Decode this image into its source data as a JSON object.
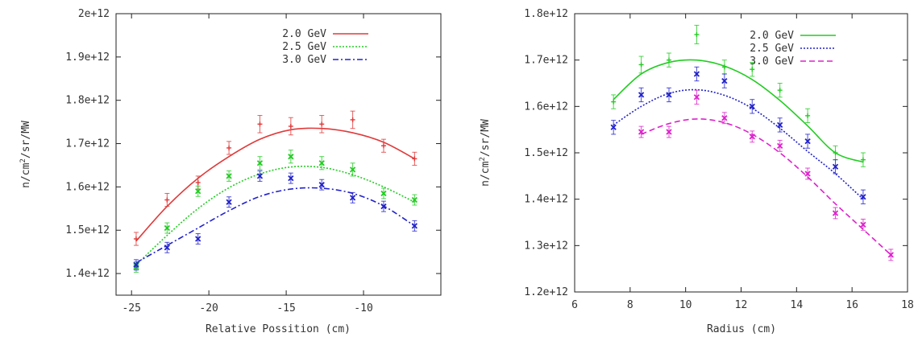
{
  "chart_data": [
    {
      "type": "scatter",
      "title": "",
      "xlabel": "Relative Possition (cm)",
      "ylabel": "n/cm²/sr/MW",
      "xlim": [
        -26,
        -5
      ],
      "ylim": [
        1350000000000.0,
        2000000000000.0
      ],
      "xticks": [
        -25,
        -20,
        -15,
        -10
      ],
      "xtick_labels": [
        "-25",
        "-20",
        "-15",
        "-10"
      ],
      "yticks": [
        1400000000000.0,
        1500000000000.0,
        1600000000000.0,
        1700000000000.0,
        1800000000000.0,
        1900000000000.0,
        2000000000000.0
      ],
      "ytick_labels": [
        "1.4e+12",
        "1.5e+12",
        "1.6e+12",
        "1.7e+12",
        "1.8e+12",
        "1.9e+12",
        "2e+12"
      ],
      "grid": false,
      "legend_position": "top-right",
      "series": [
        {
          "name": "2.0 GeV",
          "color": "#e03a3a",
          "line_style": "solid",
          "marker": "plus",
          "x": [
            -24.7,
            -22.7,
            -20.7,
            -18.7,
            -16.7,
            -14.7,
            -12.7,
            -10.7,
            -8.7,
            -6.7
          ],
          "y": [
            1480000000000.0,
            1570000000000.0,
            1610000000000.0,
            1690000000000.0,
            1745000000000.0,
            1740000000000.0,
            1745000000000.0,
            1755000000000.0,
            1695000000000.0,
            1665000000000.0
          ],
          "err": [
            15000000000.0,
            15000000000.0,
            15000000000.0,
            15000000000.0,
            20000000000.0,
            20000000000.0,
            20000000000.0,
            20000000000.0,
            15000000000.0,
            15000000000.0
          ],
          "fit_x": [
            -24.7,
            -22.7,
            -20.7,
            -18.7,
            -16.7,
            -14.7,
            -12.7,
            -10.7,
            -8.7,
            -6.7
          ],
          "fit_y": [
            1475000000000.0,
            1555000000000.0,
            1620000000000.0,
            1670000000000.0,
            1710000000000.0,
            1732000000000.0,
            1735000000000.0,
            1725000000000.0,
            1703000000000.0,
            1665000000000.0
          ]
        },
        {
          "name": "2.5 GeV",
          "color": "#22cc22",
          "line_style": "dotted",
          "marker": "x",
          "x": [
            -24.7,
            -22.7,
            -20.7,
            -18.7,
            -16.7,
            -14.7,
            -12.7,
            -10.7,
            -8.7,
            -6.7
          ],
          "y": [
            1415000000000.0,
            1505000000000.0,
            1590000000000.0,
            1625000000000.0,
            1655000000000.0,
            1670000000000.0,
            1655000000000.0,
            1640000000000.0,
            1585000000000.0,
            1570000000000.0
          ],
          "err": [
            12000000000.0,
            12000000000.0,
            12000000000.0,
            12000000000.0,
            15000000000.0,
            15000000000.0,
            15000000000.0,
            15000000000.0,
            12000000000.0,
            12000000000.0
          ],
          "fit_x": [
            -24.7,
            -22.7,
            -20.7,
            -18.7,
            -16.7,
            -14.7,
            -12.7,
            -10.7,
            -8.7,
            -6.7
          ],
          "fit_y": [
            1420000000000.0,
            1488000000000.0,
            1550000000000.0,
            1598000000000.0,
            1630000000000.0,
            1646000000000.0,
            1645000000000.0,
            1628000000000.0,
            1600000000000.0,
            1565000000000.0
          ]
        },
        {
          "name": "3.0 GeV",
          "color": "#2222cc",
          "line_style": "dashdot",
          "marker": "x",
          "x": [
            -24.7,
            -22.7,
            -20.7,
            -18.7,
            -16.7,
            -14.7,
            -12.7,
            -10.7,
            -8.7,
            -6.7
          ],
          "y": [
            1420000000000.0,
            1460000000000.0,
            1480000000000.0,
            1565000000000.0,
            1625000000000.0,
            1620000000000.0,
            1605000000000.0,
            1575000000000.0,
            1555000000000.0,
            1510000000000.0
          ],
          "err": [
            12000000000.0,
            12000000000.0,
            12000000000.0,
            12000000000.0,
            12000000000.0,
            12000000000.0,
            12000000000.0,
            12000000000.0,
            12000000000.0,
            12000000000.0
          ],
          "fit_x": [
            -24.7,
            -22.7,
            -20.7,
            -18.7,
            -16.7,
            -14.7,
            -12.7,
            -10.7,
            -8.7,
            -6.7
          ],
          "fit_y": [
            1425000000000.0,
            1465000000000.0,
            1505000000000.0,
            1545000000000.0,
            1578000000000.0,
            1595000000000.0,
            1597000000000.0,
            1585000000000.0,
            1556000000000.0,
            1510000000000.0
          ]
        }
      ]
    },
    {
      "type": "scatter",
      "title": "",
      "xlabel": "Radius (cm)",
      "ylabel": "n/cm²/sr/MW",
      "xlim": [
        6,
        18
      ],
      "ylim": [
        1200000000000.0,
        1800000000000.0
      ],
      "xticks": [
        6,
        8,
        10,
        12,
        14,
        16,
        18
      ],
      "xtick_labels": [
        "6",
        "8",
        "10",
        "12",
        "14",
        "16",
        "18"
      ],
      "yticks": [
        1200000000000.0,
        1300000000000.0,
        1400000000000.0,
        1500000000000.0,
        1600000000000.0,
        1700000000000.0,
        1800000000000.0
      ],
      "ytick_labels": [
        "1.2e+12",
        "1.3e+12",
        "1.4e+12",
        "1.5e+12",
        "1.6e+12",
        "1.7e+12",
        "1.8e+12"
      ],
      "grid": false,
      "legend_position": "top-right",
      "series": [
        {
          "name": "2.0 GeV",
          "color": "#22cc22",
          "line_style": "solid",
          "marker": "plus",
          "x": [
            7.4,
            8.4,
            9.4,
            10.4,
            11.4,
            12.4,
            13.4,
            14.4,
            15.4,
            16.4
          ],
          "y": [
            1610000000000.0,
            1690000000000.0,
            1700000000000.0,
            1755000000000.0,
            1685000000000.0,
            1680000000000.0,
            1635000000000.0,
            1580000000000.0,
            1500000000000.0,
            1485000000000.0
          ],
          "err": [
            15000000000.0,
            18000000000.0,
            15000000000.0,
            20000000000.0,
            15000000000.0,
            15000000000.0,
            15000000000.0,
            15000000000.0,
            15000000000.0,
            15000000000.0
          ],
          "fit_x": [
            7.4,
            8.4,
            9.4,
            10.4,
            11.4,
            12.4,
            13.4,
            14.4,
            15.4,
            16.4
          ],
          "fit_y": [
            1615000000000.0,
            1670000000000.0,
            1695000000000.0,
            1700000000000.0,
            1687000000000.0,
            1658000000000.0,
            1613000000000.0,
            1558000000000.0,
            1500000000000.0,
            1480000000000.0
          ]
        },
        {
          "name": "2.5 GeV",
          "color": "#2222cc",
          "line_style": "dotted",
          "marker": "x",
          "x": [
            7.4,
            8.4,
            9.4,
            10.4,
            11.4,
            12.4,
            13.4,
            14.4,
            15.4,
            16.4
          ],
          "y": [
            1555000000000.0,
            1625000000000.0,
            1625000000000.0,
            1670000000000.0,
            1655000000000.0,
            1600000000000.0,
            1560000000000.0,
            1525000000000.0,
            1470000000000.0,
            1405000000000.0
          ],
          "err": [
            15000000000.0,
            15000000000.0,
            15000000000.0,
            15000000000.0,
            15000000000.0,
            15000000000.0,
            15000000000.0,
            15000000000.0,
            15000000000.0,
            15000000000.0
          ],
          "fit_x": [
            7.4,
            8.4,
            9.4,
            10.4,
            11.4,
            12.4,
            13.4,
            14.4,
            15.4,
            16.4
          ],
          "fit_y": [
            1560000000000.0,
            1600000000000.0,
            1628000000000.0,
            1636000000000.0,
            1624000000000.0,
            1596000000000.0,
            1553000000000.0,
            1503000000000.0,
            1455000000000.0,
            1400000000000.0
          ]
        },
        {
          "name": "3.0 GeV",
          "color": "#dd22cc",
          "line_style": "dashed",
          "marker": "x",
          "x": [
            8.4,
            9.4,
            10.4,
            11.4,
            12.4,
            13.4,
            14.4,
            15.4,
            16.4,
            17.4
          ],
          "y": [
            1545000000000.0,
            1545000000000.0,
            1620000000000.0,
            1575000000000.0,
            1535000000000.0,
            1515000000000.0,
            1455000000000.0,
            1370000000000.0,
            1345000000000.0,
            1280000000000.0
          ],
          "err": [
            12000000000.0,
            12000000000.0,
            15000000000.0,
            12000000000.0,
            12000000000.0,
            12000000000.0,
            12000000000.0,
            12000000000.0,
            12000000000.0,
            12000000000.0
          ],
          "fit_x": [
            8.4,
            9.4,
            10.4,
            11.4,
            12.4,
            13.4,
            14.4,
            15.4,
            16.4,
            17.4
          ],
          "fit_y": [
            1540000000000.0,
            1563000000000.0,
            1573000000000.0,
            1565000000000.0,
            1540000000000.0,
            1500000000000.0,
            1448000000000.0,
            1390000000000.0,
            1335000000000.0,
            1280000000000.0
          ]
        }
      ]
    }
  ]
}
